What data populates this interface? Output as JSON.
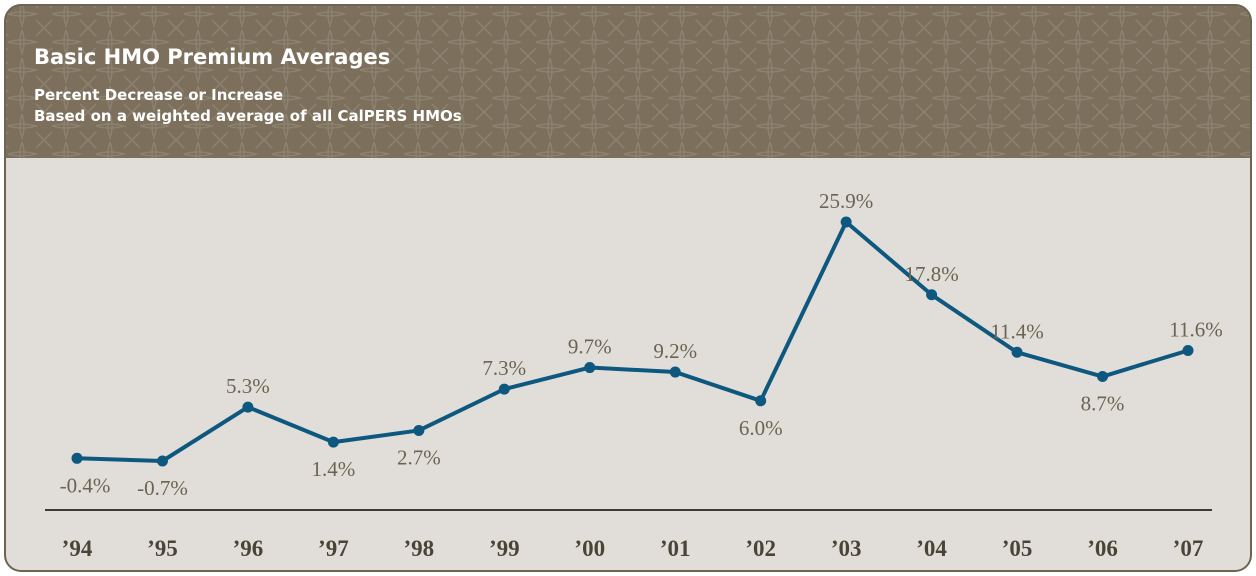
{
  "chart_data": {
    "type": "line",
    "title": "Basic HMO Premium Averages",
    "subtitle": [
      "Percent Decrease or Increase",
      "Based on a weighted average of all CalPERS HMOs"
    ],
    "categories": [
      "’94",
      "’95",
      "’96",
      "’97",
      "’98",
      "’99",
      "’00",
      "’01",
      "’02",
      "’03",
      "’04",
      "’05",
      "’06",
      "’07"
    ],
    "values": [
      -0.4,
      -0.7,
      5.3,
      1.4,
      2.7,
      7.3,
      9.7,
      9.2,
      6.0,
      25.9,
      17.8,
      11.4,
      8.7,
      11.6
    ],
    "value_labels": [
      "-0.4%",
      "-0.7%",
      "5.3%",
      "1.4%",
      "2.7%",
      "7.3%",
      "9.7%",
      "9.2%",
      "6.0%",
      "25.9%",
      "17.8%",
      "11.4%",
      "8.7%",
      "11.6%"
    ],
    "color": "#0e5880"
  }
}
